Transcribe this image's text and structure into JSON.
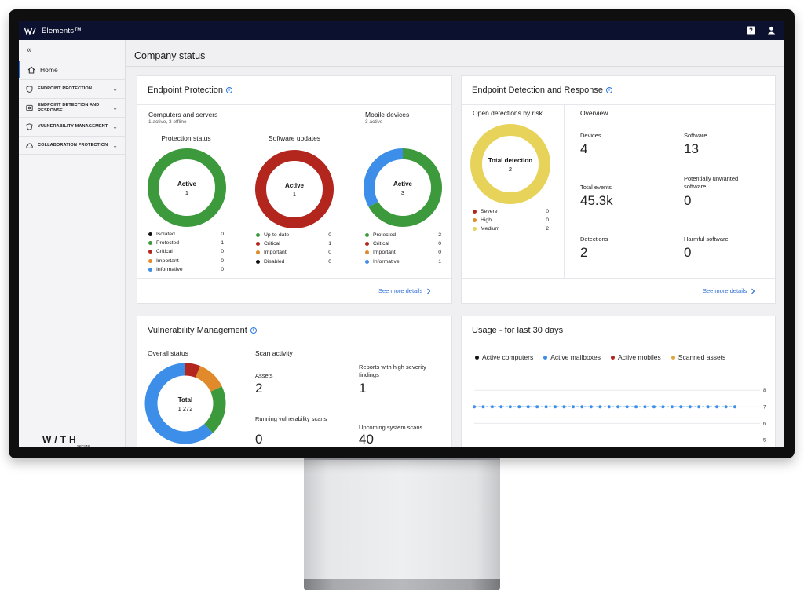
{
  "app": {
    "brand": "Elements™"
  },
  "sidebar": {
    "collapse_glyph": "«",
    "home": "Home",
    "items": [
      {
        "label": "ENDPOINT PROTECTION",
        "icon": "shield-icon"
      },
      {
        "label": "ENDPOINT DETECTION AND RESPONSE",
        "icon": "detection-icon"
      },
      {
        "label": "VULNERABILITY MANAGEMENT",
        "icon": "vulnerability-icon"
      },
      {
        "label": "COLLABORATION PROTECTION",
        "icon": "cloud-icon"
      }
    ],
    "logo_with": "W/TH",
    "logo_secure": "secure"
  },
  "page": {
    "title": "Company status"
  },
  "endpoint_protection": {
    "title": "Endpoint Protection",
    "computers": {
      "title": "Computers and servers",
      "subtitle": "1 active, 3 offline",
      "protection": {
        "title": "Protection status",
        "center_label": "Active",
        "center_value": "1",
        "legend": [
          {
            "label": "Isolated",
            "value": "0",
            "color": "#111111"
          },
          {
            "label": "Protected",
            "value": "1",
            "color": "#3c9a3c"
          },
          {
            "label": "Critical",
            "value": "0",
            "color": "#b2261d"
          },
          {
            "label": "Important",
            "value": "0",
            "color": "#e08a2c"
          },
          {
            "label": "Informative",
            "value": "0",
            "color": "#3d8ee8"
          }
        ]
      },
      "updates": {
        "title": "Software updates",
        "center_label": "Active",
        "center_value": "1",
        "legend": [
          {
            "label": "Up-to-date",
            "value": "0",
            "color": "#3c9a3c"
          },
          {
            "label": "Critical",
            "value": "1",
            "color": "#b2261d"
          },
          {
            "label": "Important",
            "value": "0",
            "color": "#e08a2c"
          },
          {
            "label": "Disabled",
            "value": "0",
            "color": "#111111"
          }
        ]
      }
    },
    "mobile": {
      "title": "Mobile devices",
      "subtitle": "3 active",
      "center_label": "Active",
      "center_value": "3",
      "legend": [
        {
          "label": "Protected",
          "value": "2",
          "color": "#3c9a3c"
        },
        {
          "label": "Critical",
          "value": "0",
          "color": "#b2261d"
        },
        {
          "label": "Important",
          "value": "0",
          "color": "#e08a2c"
        },
        {
          "label": "Informative",
          "value": "1",
          "color": "#3d8ee8"
        }
      ]
    },
    "see_more": "See more details"
  },
  "edr": {
    "title": "Endpoint Detection and Response",
    "open_detections": {
      "title": "Open detections by risk",
      "center_label": "Total detection",
      "center_value": "2",
      "legend": [
        {
          "label": "Severe",
          "value": "0",
          "color": "#b2261d"
        },
        {
          "label": "High",
          "value": "0",
          "color": "#e08a2c"
        },
        {
          "label": "Medium",
          "value": "2",
          "color": "#e8d35a"
        }
      ]
    },
    "overview": {
      "title": "Overview",
      "stats": [
        {
          "label": "Devices",
          "value": "4"
        },
        {
          "label": "Software",
          "value": "13"
        },
        {
          "label": "Total events",
          "value": "45.3k"
        },
        {
          "label": "Potentially unwanted software",
          "value": "0"
        },
        {
          "label": "Detections",
          "value": "2"
        },
        {
          "label": "Harmful software",
          "value": "0"
        }
      ]
    },
    "see_more": "See more details"
  },
  "vulnerability": {
    "title": "Vulnerability Management",
    "overall": {
      "title": "Overall status",
      "center_label": "Total",
      "center_value": "1 272",
      "segments": [
        {
          "color": "#3d8ee8",
          "fraction": 0.62
        },
        {
          "color": "#3c9a3c",
          "fraction": 0.2
        },
        {
          "color": "#e08a2c",
          "fraction": 0.12
        },
        {
          "color": "#b2261d",
          "fraction": 0.06
        }
      ]
    },
    "scan": {
      "title": "Scan activity",
      "stats": [
        {
          "label": "Assets",
          "value": "2"
        },
        {
          "label": "Reports with high severity findings",
          "value": "1"
        },
        {
          "label": "Running vulnerability scans",
          "value": "0"
        },
        {
          "label": "Upcoming system scans",
          "value": "40"
        }
      ]
    }
  },
  "usage": {
    "title": "Usage - for last 30 days",
    "legend": [
      {
        "label": "Active computers",
        "color": "#111111"
      },
      {
        "label": "Active mailboxes",
        "color": "#3d8ee8"
      },
      {
        "label": "Active mobiles",
        "color": "#b2261d"
      },
      {
        "label": "Scanned assets",
        "color": "#e0a83c"
      }
    ],
    "y_ticks": [
      "8",
      "7",
      "6",
      "5"
    ]
  },
  "chart_data": {
    "type": "line",
    "x": [
      1,
      2,
      3,
      4,
      5,
      6,
      7,
      8,
      9,
      10,
      11,
      12,
      13,
      14,
      15,
      16,
      17,
      18,
      19,
      20,
      21,
      22,
      23,
      24,
      25,
      26,
      27,
      28,
      29,
      30
    ],
    "series": [
      {
        "name": "Active mailboxes",
        "color": "#3d8ee8",
        "values": [
          7,
          7,
          7,
          7,
          7,
          7,
          7,
          7,
          7,
          7,
          7,
          7,
          7,
          7,
          7,
          7,
          7,
          7,
          7,
          7,
          7,
          7,
          7,
          7,
          7,
          7,
          7,
          7,
          7,
          7
        ]
      }
    ],
    "title": "Usage - for last 30 days",
    "ylim": [
      4.5,
      8.2
    ],
    "y_ticks": [
      8,
      7,
      6,
      5
    ]
  }
}
